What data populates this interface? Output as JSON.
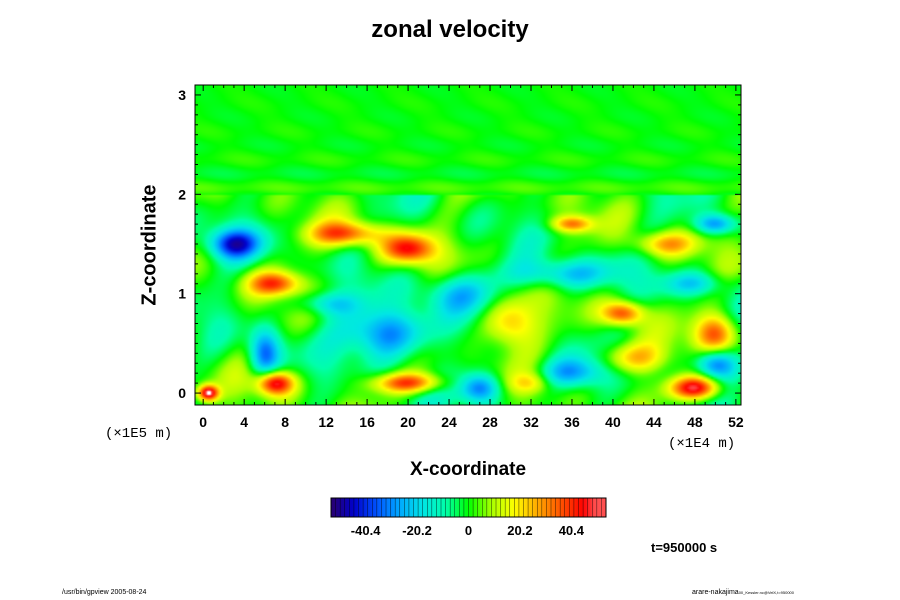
{
  "chart_data": {
    "type": "heatmap",
    "title": "zonal velocity",
    "xlabel": "X-coordinate",
    "ylabel": "Z-coordinate",
    "x_units_label": "(×1E4 m)",
    "y_units_label": "(×1E5 m)",
    "xlim": [
      -0.8,
      52.5
    ],
    "ylim": [
      -0.12,
      3.1
    ],
    "x_ticks": [
      0,
      4,
      8,
      12,
      16,
      20,
      24,
      28,
      32,
      36,
      40,
      44,
      48,
      52
    ],
    "y_ticks": [
      0,
      1,
      2,
      3
    ],
    "colorbar": {
      "range": [
        -54,
        54
      ],
      "tick_values": [
        -40.4,
        -20.2,
        0,
        20.2,
        40.4
      ],
      "tick_labels": [
        "-40.4",
        "-20.2",
        "0",
        "20.2",
        "40.4"
      ],
      "colors": [
        "#2a006e",
        "#0000cc",
        "#0055ff",
        "#00aaff",
        "#00e6e6",
        "#00ffaa",
        "#00ff00",
        "#aaff00",
        "#ffff00",
        "#ffaa00",
        "#ff5500",
        "#ff0000",
        "#ff9999"
      ]
    },
    "time_label": "t=950000 s",
    "features": [
      {
        "x": 18,
        "z": 0.6,
        "value": -38,
        "sx": 4,
        "sz": 0.25
      },
      {
        "x": 7,
        "z": 0.1,
        "value": 50,
        "sx": 1.8,
        "sz": 0.12
      },
      {
        "x": 20,
        "z": 0.1,
        "value": 38,
        "sx": 3.5,
        "sz": 0.1
      },
      {
        "x": 20,
        "z": 1.45,
        "value": 42,
        "sx": 2.5,
        "sz": 0.15
      },
      {
        "x": 14,
        "z": 1.6,
        "value": 35,
        "sx": 3.5,
        "sz": 0.12
      },
      {
        "x": 3,
        "z": 1.5,
        "value": -40,
        "sx": 2.5,
        "sz": 0.15
      },
      {
        "x": 7,
        "z": 1.1,
        "value": 35,
        "sx": 2.5,
        "sz": 0.12
      },
      {
        "x": 6,
        "z": 0.4,
        "value": -35,
        "sx": 1.5,
        "sz": 0.25
      },
      {
        "x": 27,
        "z": 0.05,
        "value": -35,
        "sx": 2,
        "sz": 0.15
      },
      {
        "x": 48,
        "z": 0.05,
        "value": 52,
        "sx": 2.5,
        "sz": 0.12
      },
      {
        "x": 50,
        "z": 0.3,
        "value": -35,
        "sx": 2,
        "sz": 0.15
      },
      {
        "x": 41,
        "z": 0.8,
        "value": 40,
        "sx": 2,
        "sz": 0.12
      },
      {
        "x": 50,
        "z": 0.6,
        "value": 35,
        "sx": 2,
        "sz": 0.2
      },
      {
        "x": 30,
        "z": 0.7,
        "value": 30,
        "sx": 2.5,
        "sz": 0.25
      },
      {
        "x": 36,
        "z": 0.2,
        "value": -25,
        "sx": 3,
        "sz": 0.15
      },
      {
        "x": 0.5,
        "z": 0.0,
        "value": 52,
        "sx": 1,
        "sz": 0.08
      },
      {
        "x": 35,
        "z": 1.2,
        "value": -25,
        "sx": 5,
        "sz": 0.15
      },
      {
        "x": 45,
        "z": 1.5,
        "value": 25,
        "sx": 3,
        "sz": 0.12
      },
      {
        "x": 48,
        "z": 1.1,
        "value": -20,
        "sx": 3,
        "sz": 0.12
      },
      {
        "x": 25,
        "z": 1.0,
        "value": -20,
        "sx": 4,
        "sz": 0.2
      },
      {
        "x": 50,
        "z": 1.7,
        "value": -30,
        "sx": 2,
        "sz": 0.1
      },
      {
        "x": 36,
        "z": 1.7,
        "value": 30,
        "sx": 2,
        "sz": 0.08
      },
      {
        "x": 12,
        "z": 0.9,
        "value": -20,
        "sx": 3,
        "sz": 0.12
      },
      {
        "x": 42,
        "z": 0.35,
        "value": 25,
        "sx": 3,
        "sz": 0.15
      },
      {
        "x": 32,
        "z": 0.1,
        "value": 15,
        "sx": 2,
        "sz": 0.1
      }
    ]
  },
  "footer": {
    "left": "/usr/bin/gpview 2005-08-24",
    "right": "arare-nakajima",
    "right_small": "00_Kessler.nc@VelX,t=950000"
  }
}
